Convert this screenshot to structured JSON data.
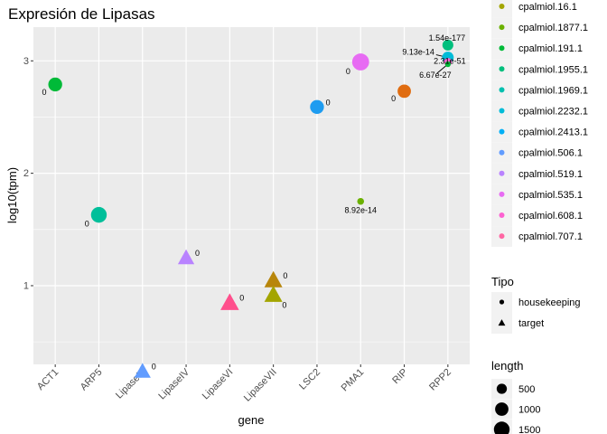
{
  "chart_data": {
    "type": "scatter",
    "title": "Expresión de Lipasas",
    "xlabel": "gene",
    "ylabel": "log10(tpm)",
    "categories": [
      "ACT1",
      "ARP5",
      "LipaseIII",
      "LipaseIV",
      "LipaseVI",
      "LipaseVII",
      "LSC2",
      "PMA1",
      "RIP",
      "RPP2"
    ],
    "ylim": [
      0.3,
      3.3
    ],
    "yticks": [
      1,
      2,
      3
    ],
    "grid": true,
    "background": "#ebebeb",
    "legend_position": "right",
    "colour_legend": {
      "title": "",
      "entries": [
        {
          "label": "cpalmiol.16.1",
          "color": "#a3a500"
        },
        {
          "label": "cpalmiol.1877.1",
          "color": "#6bb100"
        },
        {
          "label": "cpalmiol.191.1",
          "color": "#00ba38"
        },
        {
          "label": "cpalmiol.1955.1",
          "color": "#00bf7d"
        },
        {
          "label": "cpalmiol.1969.1",
          "color": "#00c0af"
        },
        {
          "label": "cpalmiol.2232.1",
          "color": "#00bcd8"
        },
        {
          "label": "cpalmiol.2413.1",
          "color": "#00b0f6"
        },
        {
          "label": "cpalmiol.506.1",
          "color": "#619cff"
        },
        {
          "label": "cpalmiol.519.1",
          "color": "#b983ff"
        },
        {
          "label": "cpalmiol.535.1",
          "color": "#e76bf3"
        },
        {
          "label": "cpalmiol.608.1",
          "color": "#fd61d1"
        },
        {
          "label": "cpalmiol.707.1",
          "color": "#ff67a4"
        }
      ]
    },
    "tipo_legend": {
      "title": "Tipo",
      "entries": [
        {
          "label": "housekeeping",
          "shape": "circle"
        },
        {
          "label": "target",
          "shape": "triangle"
        }
      ]
    },
    "length_legend": {
      "title": "length",
      "entries": [
        {
          "label": "500",
          "value": 500
        },
        {
          "label": "1000",
          "value": 1000
        },
        {
          "label": "1500",
          "value": 1500
        }
      ]
    },
    "points": [
      {
        "gene": "ACT1",
        "y": 2.79,
        "color": "#00ba38",
        "shape": "circle",
        "length": 1100,
        "label": "0",
        "label_pos": "bl"
      },
      {
        "gene": "ARP5",
        "y": 1.63,
        "color": "#00bf9a",
        "shape": "circle",
        "length": 1500,
        "label": "0",
        "label_pos": "bl"
      },
      {
        "gene": "LipaseIII",
        "y": 0.24,
        "color": "#619cff",
        "shape": "triangle",
        "length": 1200,
        "label": "0",
        "label_pos": "r"
      },
      {
        "gene": "LipaseIV",
        "y": 1.25,
        "color": "#b983ff",
        "shape": "triangle",
        "length": 1200,
        "label": "0",
        "label_pos": "r"
      },
      {
        "gene": "LipaseVI",
        "y": 0.85,
        "color": "#ff4f8c",
        "shape": "triangle",
        "length": 1600,
        "label": "0",
        "label_pos": "r"
      },
      {
        "gene": "LipaseVII",
        "y": 1.05,
        "color": "#b8860b",
        "shape": "triangle",
        "length": 1500,
        "label": "0",
        "label_pos": "r"
      },
      {
        "gene": "LipaseVII",
        "y": 0.92,
        "color": "#a3a500",
        "shape": "triangle",
        "length": 1500,
        "label": "0",
        "label_pos": "br"
      },
      {
        "gene": "LSC2",
        "y": 2.59,
        "color": "#1e9cf0",
        "shape": "circle",
        "length": 1100,
        "label": "0",
        "label_pos": "r"
      },
      {
        "gene": "PMA1",
        "y": 2.99,
        "color": "#e76bf3",
        "shape": "circle",
        "length": 1800,
        "label": "0",
        "label_pos": "bl"
      },
      {
        "gene": "PMA1",
        "y": 1.75,
        "color": "#6bb100",
        "shape": "circle",
        "length": 150,
        "label": "8.92e-14",
        "label_pos": "b"
      },
      {
        "gene": "RIP",
        "y": 2.73,
        "color": "#e06c10",
        "shape": "circle",
        "length": 1000,
        "label": "0",
        "label_pos": "bl"
      },
      {
        "gene": "RPP2",
        "y": 3.14,
        "color": "#00bf7d",
        "shape": "circle",
        "length": 600,
        "label": "1.54e-177",
        "label_pos": "t"
      },
      {
        "gene": "RPP2",
        "y": 3.03,
        "color": "#00bcd8",
        "shape": "circle",
        "length": 700,
        "label": "9.13e-14",
        "label_pos": "lead-l"
      },
      {
        "gene": "RPP2",
        "y": 2.99,
        "color": "#fd61d1",
        "shape": "circle",
        "length": 250,
        "label": "2.31e-51",
        "label_pos": "br-near"
      },
      {
        "gene": "RPP2",
        "y": 2.97,
        "color": "#00ba38",
        "shape": "circle",
        "length": 80,
        "label": "6.67e-27",
        "label_pos": "lead-bl"
      }
    ]
  }
}
